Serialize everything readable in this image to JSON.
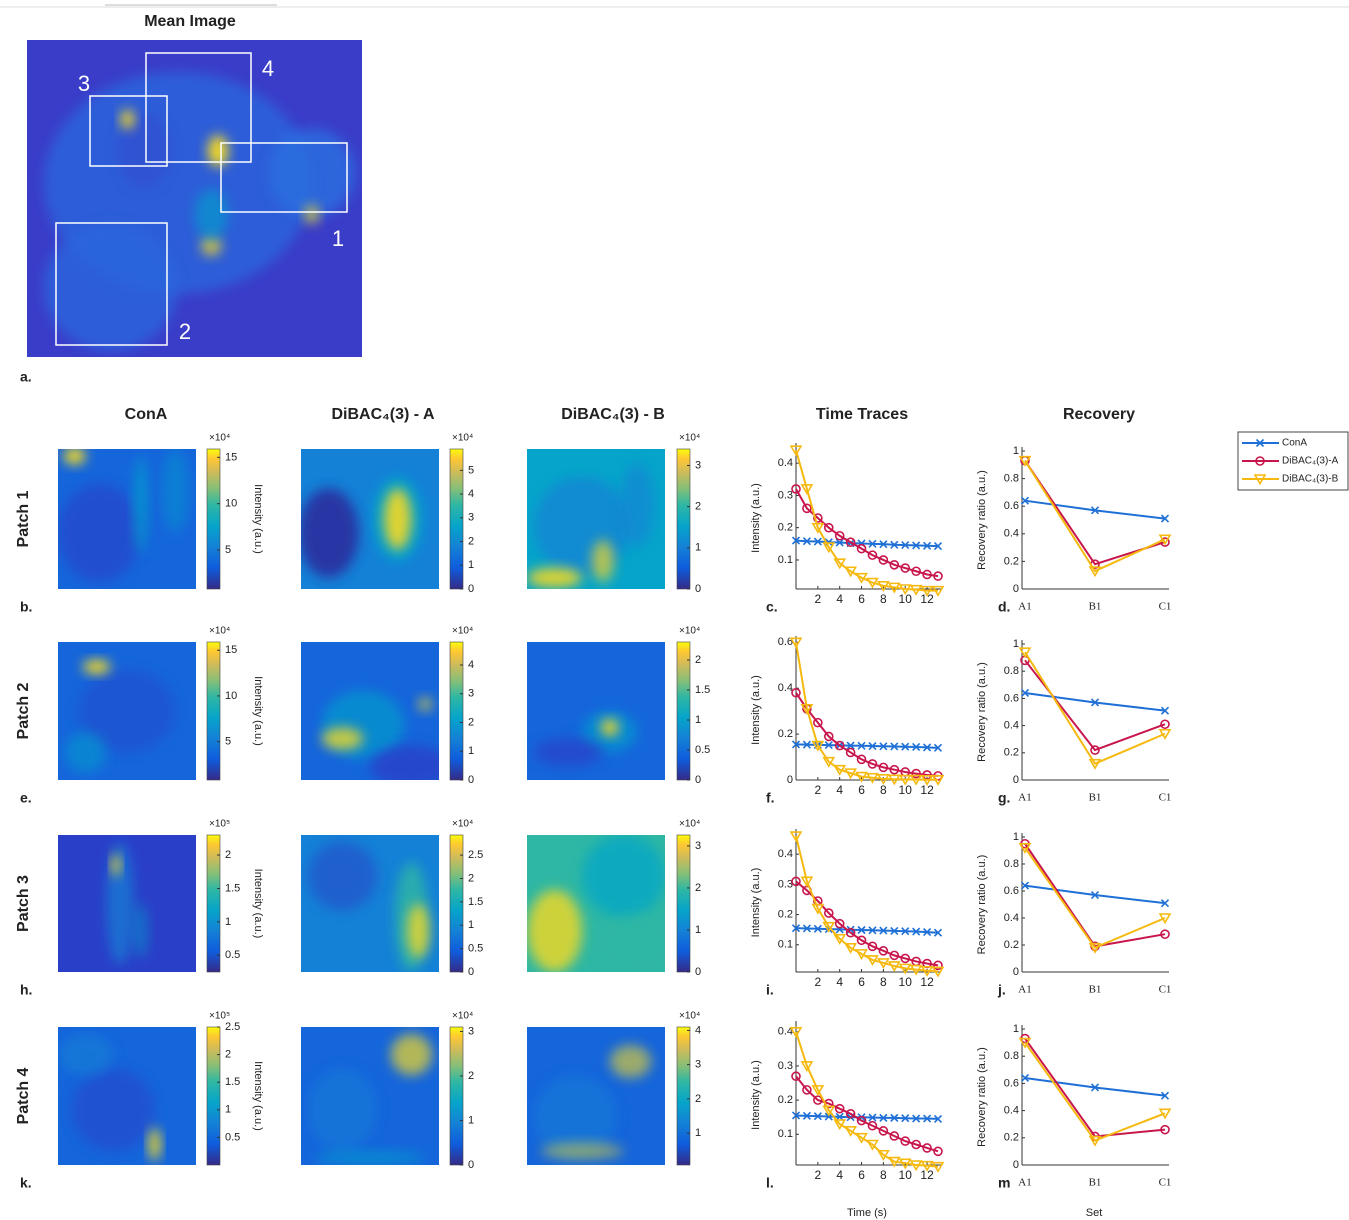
{
  "mean_image": {
    "title": "Mean Image",
    "roi_labels": [
      "1",
      "2",
      "3",
      "4"
    ],
    "panel_label": "a."
  },
  "columns": [
    "ConA",
    "DiBAC₄(3) - A",
    "DiBAC₄(3) - B",
    "Time Traces",
    "Recovery"
  ],
  "colorbar_label": "Intensity (a.u.)",
  "rows": [
    {
      "label": "Patch 1",
      "panel_labels": [
        "b.",
        "c.",
        "d."
      ],
      "colorbars": [
        {
          "scale": "×10⁴",
          "lim": [
            0.8,
            15.9
          ],
          "ticks": [
            5,
            10,
            15
          ]
        },
        {
          "scale": "×10⁴",
          "lim": [
            0,
            5.9
          ],
          "ticks": [
            0,
            1,
            2,
            3,
            4,
            5
          ]
        },
        {
          "scale": "×10⁴",
          "lim": [
            0,
            3.4
          ],
          "ticks": [
            0,
            1,
            2,
            3
          ]
        }
      ]
    },
    {
      "label": "Patch 2",
      "panel_labels": [
        "e.",
        "f.",
        "g."
      ],
      "colorbars": [
        {
          "scale": "×10⁴",
          "lim": [
            0.8,
            15.9
          ],
          "ticks": [
            5,
            10,
            15
          ]
        },
        {
          "scale": "×10⁴",
          "lim": [
            0,
            4.8
          ],
          "ticks": [
            0,
            1,
            2,
            3,
            4
          ]
        },
        {
          "scale": "×10⁴",
          "lim": [
            0,
            2.3
          ],
          "ticks": [
            0,
            0.5,
            1,
            1.5,
            2
          ]
        }
      ]
    },
    {
      "label": "Patch 3",
      "panel_labels": [
        "h.",
        "i.",
        "j."
      ],
      "colorbars": [
        {
          "scale": "×10⁵",
          "lim": [
            0.25,
            2.3
          ],
          "ticks": [
            0.5,
            1,
            1.5,
            2
          ]
        },
        {
          "scale": "×10⁴",
          "lim": [
            0,
            2.93
          ],
          "ticks": [
            0,
            0.5,
            1,
            1.5,
            2,
            2.5
          ]
        },
        {
          "scale": "×10⁴",
          "lim": [
            0,
            3.26
          ],
          "ticks": [
            0,
            1,
            2,
            3
          ]
        }
      ]
    },
    {
      "label": "Patch 4",
      "panel_labels": [
        "k.",
        "l.",
        "m"
      ],
      "colorbars": [
        {
          "scale": "×10⁵",
          "lim": [
            0,
            2.5
          ],
          "ticks": [
            0.5,
            1,
            1.5,
            2,
            2.5
          ]
        },
        {
          "scale": "×10⁴",
          "lim": [
            0,
            3.1
          ],
          "ticks": [
            0,
            1,
            2,
            3
          ]
        },
        {
          "scale": "×10⁴",
          "lim": [
            0.07,
            4.1
          ],
          "ticks": [
            1,
            2,
            3,
            4
          ]
        }
      ]
    }
  ],
  "chart_data": [
    {
      "type": "line",
      "x": [
        0,
        1,
        2,
        3,
        4,
        5,
        6,
        7,
        8,
        9,
        10,
        11,
        12,
        13
      ],
      "xlim": [
        0,
        13
      ],
      "xticks": [
        2,
        4,
        6,
        8,
        10,
        12
      ],
      "ylim": [
        0.01,
        0.45
      ],
      "yticks": [
        0.1,
        0.2,
        0.3,
        0.4
      ],
      "ylabel": "Intensity (a.u.)",
      "series": [
        {
          "name": "ConA",
          "color": "#1f70d6",
          "marker": "x",
          "values": [
            0.16,
            0.158,
            0.157,
            0.155,
            0.154,
            0.152,
            0.151,
            0.15,
            0.149,
            0.147,
            0.146,
            0.145,
            0.144,
            0.143
          ]
        },
        {
          "name": "DiBAC₄(3)-A",
          "color": "#c8164c",
          "marker": "o",
          "values": [
            0.32,
            0.26,
            0.23,
            0.2,
            0.175,
            0.155,
            0.135,
            0.115,
            0.1,
            0.085,
            0.075,
            0.065,
            0.055,
            0.05
          ]
        },
        {
          "name": "DiBAC₄(3)-B",
          "color": "#f5b90f",
          "marker": "v",
          "values": [
            0.44,
            0.32,
            0.2,
            0.14,
            0.09,
            0.065,
            0.045,
            0.03,
            0.02,
            0.015,
            0.01,
            0.008,
            0.005,
            0.005
          ]
        }
      ]
    },
    {
      "type": "line",
      "categories": [
        "A1",
        "B1",
        "C1"
      ],
      "ylim": [
        0,
        1
      ],
      "yticks": [
        0,
        0.2,
        0.4,
        0.6,
        0.8,
        1
      ],
      "ylabel": "Recovery ratio (a.u.)",
      "series": [
        {
          "name": "ConA",
          "color": "#1f70d6",
          "marker": "x",
          "values": [
            0.64,
            0.57,
            0.51
          ]
        },
        {
          "name": "DiBAC₄(3)-A",
          "color": "#c8164c",
          "marker": "o",
          "values": [
            0.93,
            0.18,
            0.34
          ]
        },
        {
          "name": "DiBAC₄(3)-B",
          "color": "#f5b90f",
          "marker": "v",
          "values": [
            0.93,
            0.13,
            0.36
          ]
        }
      ]
    },
    {
      "type": "line",
      "x": [
        0,
        1,
        2,
        3,
        4,
        5,
        6,
        7,
        8,
        9,
        10,
        11,
        12,
        13
      ],
      "xlim": [
        0,
        13
      ],
      "xticks": [
        2,
        4,
        6,
        8,
        10,
        12
      ],
      "ylim": [
        0,
        0.61
      ],
      "yticks": [
        0,
        0.2,
        0.4,
        0.6
      ],
      "ylabel": "Intensity (a.u.)",
      "series": [
        {
          "name": "ConA",
          "color": "#1f70d6",
          "marker": "x",
          "values": [
            0.155,
            0.154,
            0.153,
            0.152,
            0.151,
            0.15,
            0.149,
            0.148,
            0.147,
            0.146,
            0.145,
            0.144,
            0.142,
            0.14
          ]
        },
        {
          "name": "DiBAC₄(3)-A",
          "color": "#c8164c",
          "marker": "o",
          "values": [
            0.38,
            0.31,
            0.25,
            0.19,
            0.15,
            0.12,
            0.09,
            0.07,
            0.055,
            0.045,
            0.035,
            0.028,
            0.022,
            0.018
          ]
        },
        {
          "name": "DiBAC₄(3)-B",
          "color": "#f5b90f",
          "marker": "v",
          "values": [
            0.6,
            0.31,
            0.15,
            0.08,
            0.045,
            0.03,
            0.015,
            0.01,
            0.005,
            0.003,
            0.002,
            0.002,
            0.001,
            0.001
          ]
        }
      ]
    },
    {
      "type": "line",
      "categories": [
        "A1",
        "B1",
        "C1"
      ],
      "ylim": [
        0,
        1
      ],
      "yticks": [
        0,
        0.2,
        0.4,
        0.6,
        0.8,
        1
      ],
      "ylabel": "Recovery ratio (a.u.)",
      "series": [
        {
          "name": "ConA",
          "color": "#1f70d6",
          "marker": "x",
          "values": [
            0.64,
            0.57,
            0.51
          ]
        },
        {
          "name": "DiBAC₄(3)-A",
          "color": "#c8164c",
          "marker": "o",
          "values": [
            0.88,
            0.22,
            0.41
          ]
        },
        {
          "name": "DiBAC₄(3)-B",
          "color": "#f5b90f",
          "marker": "v",
          "values": [
            0.94,
            0.12,
            0.34
          ]
        }
      ]
    },
    {
      "type": "line",
      "x": [
        0,
        1,
        2,
        3,
        4,
        5,
        6,
        7,
        8,
        9,
        10,
        11,
        12,
        13
      ],
      "xlim": [
        0,
        13
      ],
      "xticks": [
        2,
        4,
        6,
        8,
        10,
        12
      ],
      "ylim": [
        0.01,
        0.47
      ],
      "yticks": [
        0.1,
        0.2,
        0.3,
        0.4
      ],
      "ylabel": "Intensity (a.u.)",
      "series": [
        {
          "name": "ConA",
          "color": "#1f70d6",
          "marker": "x",
          "values": [
            0.155,
            0.154,
            0.153,
            0.152,
            0.151,
            0.15,
            0.149,
            0.148,
            0.147,
            0.146,
            0.145,
            0.144,
            0.142,
            0.14
          ]
        },
        {
          "name": "DiBAC₄(3)-A",
          "color": "#c8164c",
          "marker": "o",
          "values": [
            0.31,
            0.28,
            0.245,
            0.205,
            0.17,
            0.14,
            0.115,
            0.095,
            0.08,
            0.065,
            0.055,
            0.045,
            0.038,
            0.032
          ]
        },
        {
          "name": "DiBAC₄(3)-B",
          "color": "#f5b90f",
          "marker": "v",
          "values": [
            0.46,
            0.31,
            0.22,
            0.16,
            0.12,
            0.09,
            0.07,
            0.05,
            0.04,
            0.03,
            0.022,
            0.018,
            0.014,
            0.012
          ]
        }
      ]
    },
    {
      "type": "line",
      "categories": [
        "A1",
        "B1",
        "C1"
      ],
      "ylim": [
        0,
        1
      ],
      "yticks": [
        0,
        0.2,
        0.4,
        0.6,
        0.8,
        1
      ],
      "ylabel": "Recovery ratio (a.u.)",
      "series": [
        {
          "name": "ConA",
          "color": "#1f70d6",
          "marker": "x",
          "values": [
            0.64,
            0.57,
            0.51
          ]
        },
        {
          "name": "DiBAC₄(3)-A",
          "color": "#c8164c",
          "marker": "o",
          "values": [
            0.95,
            0.19,
            0.28
          ]
        },
        {
          "name": "DiBAC₄(3)-B",
          "color": "#f5b90f",
          "marker": "v",
          "values": [
            0.92,
            0.18,
            0.4
          ]
        }
      ]
    },
    {
      "type": "line",
      "x": [
        0,
        1,
        2,
        3,
        4,
        5,
        6,
        7,
        8,
        9,
        10,
        11,
        12,
        13
      ],
      "xlim": [
        0,
        13
      ],
      "xticks": [
        2,
        4,
        6,
        8,
        10,
        12
      ],
      "ylim": [
        0.01,
        0.42
      ],
      "yticks": [
        0.1,
        0.2,
        0.3,
        0.4
      ],
      "ylabel": "Intensity (a.u.)",
      "xlabel": "Time (s)",
      "series": [
        {
          "name": "ConA",
          "color": "#1f70d6",
          "marker": "x",
          "values": [
            0.155,
            0.154,
            0.153,
            0.152,
            0.151,
            0.15,
            0.15,
            0.149,
            0.148,
            0.148,
            0.147,
            0.146,
            0.146,
            0.145
          ]
        },
        {
          "name": "DiBAC₄(3)-A",
          "color": "#c8164c",
          "marker": "o",
          "values": [
            0.27,
            0.23,
            0.2,
            0.19,
            0.175,
            0.16,
            0.14,
            0.125,
            0.11,
            0.095,
            0.08,
            0.07,
            0.06,
            0.05
          ]
        },
        {
          "name": "DiBAC₄(3)-B",
          "color": "#f5b90f",
          "marker": "v",
          "values": [
            0.4,
            0.3,
            0.23,
            0.17,
            0.13,
            0.11,
            0.09,
            0.07,
            0.04,
            0.02,
            0.015,
            0.01,
            0.008,
            0.005
          ]
        }
      ]
    },
    {
      "type": "line",
      "categories": [
        "A1",
        "B1",
        "C1"
      ],
      "ylim": [
        0,
        1
      ],
      "yticks": [
        0,
        0.2,
        0.4,
        0.6,
        0.8,
        1
      ],
      "ylabel": "Recovery ratio (a.u.)",
      "xlabel": "Set",
      "series": [
        {
          "name": "ConA",
          "color": "#1f70d6",
          "marker": "x",
          "values": [
            0.64,
            0.57,
            0.51
          ]
        },
        {
          "name": "DiBAC₄(3)-A",
          "color": "#c8164c",
          "marker": "o",
          "values": [
            0.93,
            0.21,
            0.26
          ]
        },
        {
          "name": "DiBAC₄(3)-B",
          "color": "#f5b90f",
          "marker": "v",
          "values": [
            0.9,
            0.18,
            0.38
          ]
        }
      ]
    }
  ]
}
